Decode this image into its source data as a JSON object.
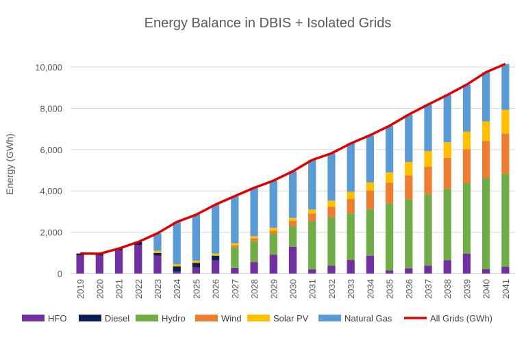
{
  "chart_data": {
    "type": "bar",
    "stacked": true,
    "title": "Energy Balance in DBIS + Isolated Grids",
    "xlabel": "",
    "ylabel": "Energy (GWh)",
    "ylim": [
      0,
      10000
    ],
    "yticks": [
      "0",
      "2,000",
      "4,000",
      "6,000",
      "8,000",
      "10,000"
    ],
    "grid": true,
    "legend_position": "bottom",
    "categories": [
      "2019",
      "2020",
      "2021",
      "2022",
      "2023",
      "2024",
      "2025",
      "2026",
      "2027",
      "2028",
      "2029",
      "2030",
      "2031",
      "2032",
      "2033",
      "2034",
      "2035",
      "2036",
      "2037",
      "2038",
      "2039",
      "2040",
      "2041"
    ],
    "series": [
      {
        "name": "HFO",
        "color": "#7030A0",
        "values": [
          880,
          870,
          1130,
          1380,
          870,
          100,
          300,
          640,
          270,
          560,
          920,
          1300,
          200,
          380,
          660,
          870,
          150,
          250,
          380,
          650,
          970,
          220,
          330
        ]
      },
      {
        "name": "Diesel",
        "color": "#0B1F52",
        "values": [
          90,
          90,
          80,
          150,
          130,
          250,
          220,
          230,
          0,
          0,
          0,
          0,
          0,
          0,
          0,
          0,
          0,
          0,
          0,
          0,
          0,
          0,
          0
        ]
      },
      {
        "name": "Hydro",
        "color": "#70AD47",
        "values": [
          0,
          0,
          0,
          0,
          0,
          0,
          0,
          0,
          1000,
          1000,
          1000,
          1000,
          2350,
          2350,
          2250,
          2250,
          3250,
          3350,
          3450,
          3450,
          3400,
          4400,
          4500
        ]
      },
      {
        "name": "Wind",
        "color": "#ED7D31",
        "values": [
          0,
          0,
          0,
          0,
          0,
          0,
          0,
          0,
          100,
          150,
          150,
          250,
          350,
          500,
          700,
          900,
          1000,
          1150,
          1350,
          1500,
          1650,
          1800,
          1950
        ]
      },
      {
        "name": "Solar PV",
        "color": "#FFC000",
        "values": [
          0,
          0,
          0,
          0,
          100,
          100,
          100,
          100,
          100,
          100,
          150,
          150,
          200,
          300,
          350,
          400,
          500,
          650,
          750,
          750,
          850,
          950,
          1150
        ]
      },
      {
        "name": "Natural Gas",
        "color": "#5B9BD5",
        "values": [
          0,
          0,
          0,
          0,
          850,
          2050,
          2230,
          2370,
          2280,
          2340,
          2280,
          2250,
          2400,
          2290,
          2340,
          2280,
          2250,
          2300,
          2250,
          2300,
          2280,
          2380,
          2220
        ]
      }
    ],
    "line": {
      "name": "All Grids (GWh)",
      "color": "#E00000",
      "values": [
        970,
        960,
        1210,
        1530,
        1950,
        2500,
        2850,
        3340,
        3750,
        4150,
        4500,
        4950,
        5500,
        5820,
        6300,
        6700,
        7150,
        7700,
        8180,
        8650,
        9150,
        9750,
        10150
      ]
    }
  }
}
